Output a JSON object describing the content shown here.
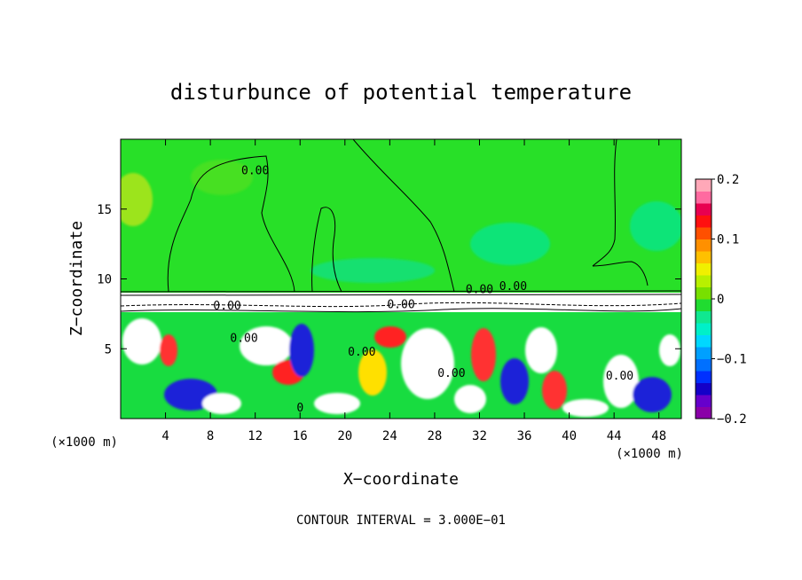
{
  "chart_data": {
    "type": "heatmap",
    "title": "disturbunce of potential temperature",
    "xlabel": "X−coordinate",
    "ylabel": "Z−coordinate",
    "x_unit": "(×1000 m)",
    "footer": "CONTOUR INTERVAL = 3.000E−01",
    "xlim": [
      0,
      50
    ],
    "ylim": [
      0,
      20
    ],
    "x_ticks": [
      4,
      8,
      12,
      16,
      20,
      24,
      28,
      32,
      36,
      40,
      44,
      48
    ],
    "y_ticks": [
      5,
      10,
      15
    ],
    "contour_interval": 0.3,
    "contour_labels": [
      {
        "text": "0.00",
        "x": 12.0,
        "z": 17.5
      },
      {
        "text": "0.00",
        "x": 9.5,
        "z": 7.8
      },
      {
        "text": "0.00",
        "x": 11.0,
        "z": 5.5
      },
      {
        "text": "0.00",
        "x": 21.5,
        "z": 4.5
      },
      {
        "text": "0.00",
        "x": 25.0,
        "z": 7.9
      },
      {
        "text": "0.00",
        "x": 29.5,
        "z": 3.0
      },
      {
        "text": "0.00",
        "x": 32.0,
        "z": 9.0
      },
      {
        "text": "0.00",
        "x": 35.0,
        "z": 9.2
      },
      {
        "text": "0.00",
        "x": 44.5,
        "z": 2.8
      },
      {
        "text": "0",
        "x": 16.0,
        "z": 0.5
      }
    ],
    "colorbar": {
      "min": -0.2,
      "max": 0.2,
      "tick_values": [
        0.2,
        0.1,
        0,
        -0.1,
        -0.2
      ],
      "tick_labels": [
        "0.2",
        "0.1",
        "0",
        "−0.1",
        "−0.2"
      ],
      "colors": [
        "#8a00a8",
        "#6600cc",
        "#1400c8",
        "#0030ff",
        "#0070ff",
        "#00a0ff",
        "#00d8ff",
        "#00f0c8",
        "#10e890",
        "#20dc30",
        "#78e000",
        "#b8f000",
        "#f0f000",
        "#ffc000",
        "#ff9000",
        "#ff5000",
        "#ff1010",
        "#e80050",
        "#ff6aa0",
        "#ffa8b8"
      ]
    }
  }
}
